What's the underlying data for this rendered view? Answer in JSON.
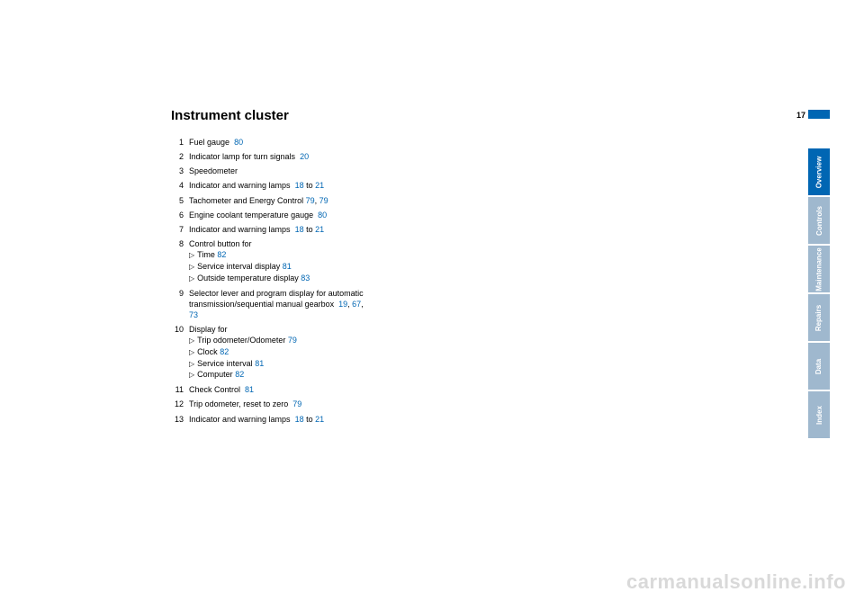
{
  "page_number": "17",
  "heading": "Instrument cluster",
  "link_color": "#0066b3",
  "tab_active_color": "#0066b3",
  "tab_inactive_color": "#9fb8ce",
  "items": {
    "i1": {
      "num": "1",
      "text": "Fuel gauge",
      "ref": "80"
    },
    "i2": {
      "num": "2",
      "text": "Indicator lamp for turn signals",
      "ref": "20"
    },
    "i3": {
      "num": "3",
      "text": "Speedometer"
    },
    "i4": {
      "num": "4",
      "text": "Indicator and warning lamps",
      "ref": "18",
      "to": "to",
      "ref2": "21"
    },
    "i5": {
      "num": "5",
      "text": "Tachometer and Energy Control",
      "ref": "79",
      "sep": ",",
      "ref2": "79"
    },
    "i6": {
      "num": "6",
      "text": "Engine coolant temperature gauge",
      "ref": "80"
    },
    "i7": {
      "num": "7",
      "text": "Indicator and warning lamps",
      "ref": "18",
      "to": "to",
      "ref2": "21"
    },
    "i8": {
      "num": "8",
      "text": "Control button for",
      "s1": {
        "t": "Time",
        "r": "82"
      },
      "s2": {
        "t": "Service interval display",
        "r": "81"
      },
      "s3": {
        "t": "Outside temperature display",
        "r": "83"
      }
    },
    "i9": {
      "num": "9",
      "text": "Selector lever and program display for automatic transmission/sequential manual gearbox",
      "ref": "19",
      "sep1": ",",
      "ref2": "67",
      "sep2": ",",
      "ref3": "73"
    },
    "i10": {
      "num": "10",
      "text": "Display for",
      "s1": {
        "t": "Trip odometer/Odometer",
        "r": "79"
      },
      "s2": {
        "t": "Clock",
        "r": "82"
      },
      "s3": {
        "t": "Service interval",
        "r": "81"
      },
      "s4": {
        "t": "Computer",
        "r": "82"
      }
    },
    "i11": {
      "num": "11",
      "text": "Check Control",
      "ref": "81"
    },
    "i12": {
      "num": "12",
      "text": "Trip odometer, reset to zero",
      "ref": "79"
    },
    "i13": {
      "num": "13",
      "text": "Indicator and warning lamps",
      "ref": "18",
      "to": "to",
      "ref2": "21"
    }
  },
  "tabs": {
    "t1": "Overview",
    "t2": "Controls",
    "t3": "Maintenance",
    "t4": "Repairs",
    "t5": "Data",
    "t6": "Index"
  },
  "watermark": "carmanualsonline.info"
}
